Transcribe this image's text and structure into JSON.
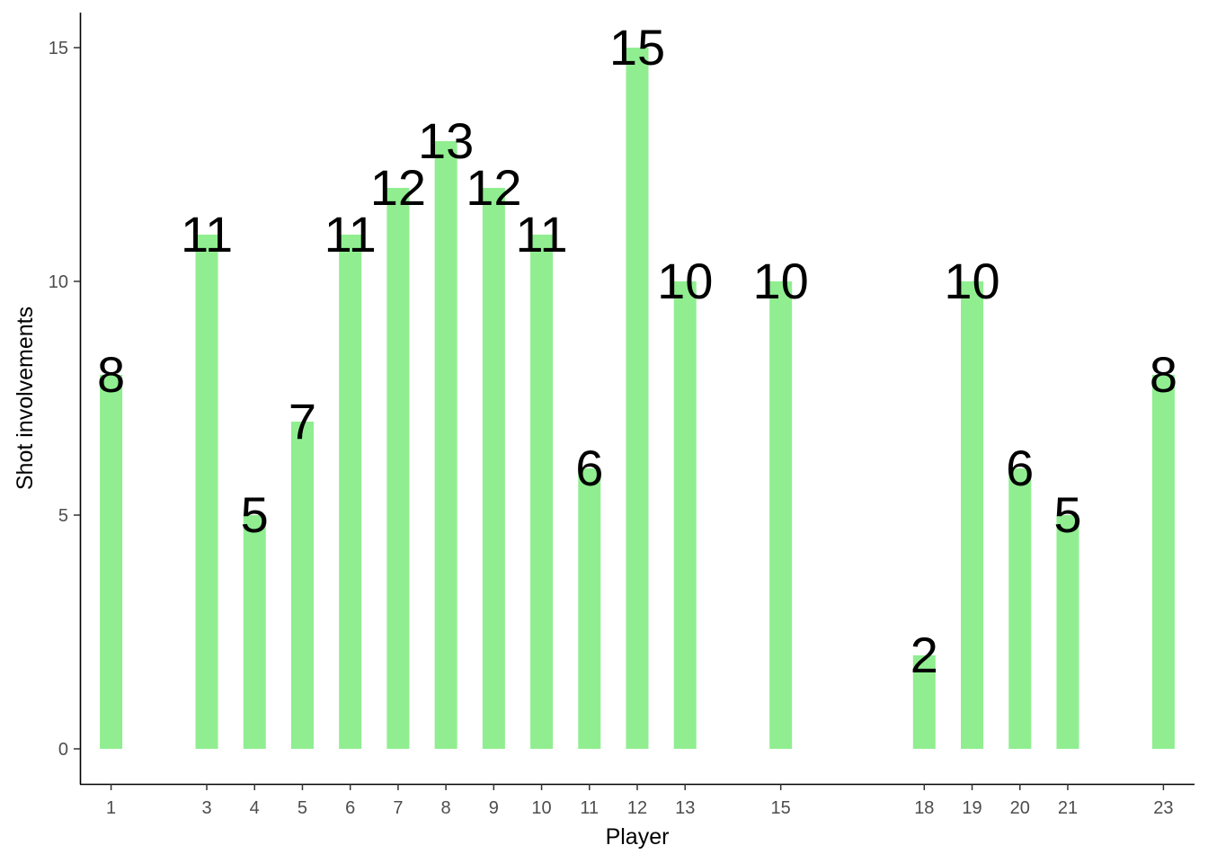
{
  "chart_data": {
    "type": "bar",
    "xlabel": "Player",
    "ylabel": "Shot involvements",
    "x": [
      1,
      3,
      4,
      5,
      6,
      7,
      8,
      9,
      10,
      11,
      12,
      13,
      15,
      18,
      19,
      20,
      21,
      23
    ],
    "values": [
      8,
      11,
      5,
      7,
      11,
      12,
      13,
      12,
      11,
      6,
      15,
      10,
      10,
      2,
      10,
      6,
      5,
      8
    ],
    "x_ticks": [
      1,
      3,
      4,
      5,
      6,
      7,
      8,
      9,
      10,
      11,
      12,
      13,
      15,
      18,
      19,
      20,
      21,
      23
    ],
    "y_ticks": [
      0,
      5,
      10,
      15
    ],
    "ylim": [
      -0.75,
      15.75
    ],
    "xlim": [
      0.35,
      23.65
    ],
    "grid": false,
    "bar_color": "#90EE90",
    "data_labels": true
  }
}
